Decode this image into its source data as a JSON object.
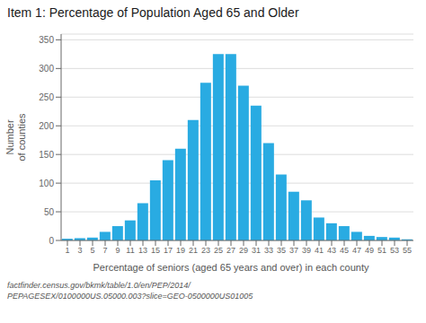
{
  "chart_data": {
    "type": "bar",
    "title": "Item 1: Percentage of Population Aged 65 and Older",
    "ylabel": "Number\nof counties",
    "xlabel": "Percentage of seniors (aged 65 years and over) in each county",
    "annotations": [
      "factfinder.census.gov/bkmk/table/1.0/en/PEP/2014/",
      "PEPAGESEX/0100000US.05000.003?slice=GEO-0500000US01005"
    ],
    "categories": [
      "1",
      "3",
      "5",
      "7",
      "9",
      "11",
      "13",
      "15",
      "17",
      "19",
      "21",
      "23",
      "25",
      "27",
      "29",
      "31",
      "33",
      "35",
      "37",
      "39",
      "41",
      "43",
      "45",
      "47",
      "49",
      "51",
      "53",
      "55"
    ],
    "values": [
      3,
      4,
      5,
      15,
      25,
      35,
      65,
      105,
      140,
      160,
      210,
      275,
      325,
      325,
      270,
      235,
      170,
      115,
      85,
      70,
      40,
      30,
      25,
      15,
      8,
      6,
      5,
      2
    ],
    "color": "#29ABE2",
    "ylim": [
      0,
      360
    ],
    "yticks": [
      0,
      50,
      100,
      150,
      200,
      250,
      300,
      350
    ],
    "grid": true
  }
}
